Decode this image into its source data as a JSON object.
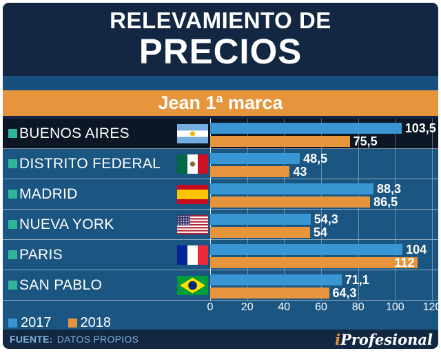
{
  "header": {
    "title_line1": "RELEVAMIENTO DE",
    "title_line2": "PRECIOS"
  },
  "subtitle": "Jean 1ª marca",
  "chart_data": {
    "type": "bar",
    "orientation": "horizontal",
    "title": "RELEVAMIENTO DE PRECIOS",
    "subtitle": "Jean 1ª marca",
    "categories": [
      "BUENOS AIRES",
      "DISTRITO FEDERAL",
      "MADRID",
      "NUEVA YORK",
      "PARIS",
      "SAN PABLO"
    ],
    "flags": [
      "argentina",
      "mexico",
      "spain",
      "usa",
      "france",
      "brazil"
    ],
    "series": [
      {
        "name": "2017",
        "color": "#3A96D2",
        "values": [
          103.5,
          48.5,
          88.3,
          54.3,
          104,
          71.1
        ],
        "value_labels": [
          "103,5",
          "48,5",
          "88,3",
          "54,3",
          "104",
          "71,1"
        ]
      },
      {
        "name": "2018",
        "color": "#E6953C",
        "values": [
          75.5,
          43,
          86.5,
          54,
          112,
          64.3
        ],
        "value_labels": [
          "75,5",
          "43",
          "86,5",
          "54",
          "112",
          "64,3"
        ]
      }
    ],
    "xlim": [
      0,
      120
    ],
    "x_ticks": [
      "0",
      "20",
      "40",
      "60",
      "80",
      "100",
      "120"
    ],
    "grid": true,
    "legend_position": "bottom-left",
    "highlighted_category": "BUENOS AIRES"
  },
  "legend": [
    {
      "label": "2017",
      "color": "#3A96D2"
    },
    {
      "label": "2018",
      "color": "#E6953C"
    }
  ],
  "footer": {
    "source_label": "FUENTE:",
    "source_value": "DATOS PROPIOS",
    "brand_prefix": "i",
    "brand_text": "Profesional"
  },
  "colors": {
    "navy": "#132743",
    "panel_blue": "#1B5682",
    "strip_blue": "#174F7E",
    "orange_band": "#E6953C",
    "bar_2017": "#3A96D2",
    "bar_2018": "#E6953C",
    "highlight_row_bg": "#0C1624",
    "bullet_teal": "#2FB69A",
    "footer_text": "#7EB0DC"
  }
}
